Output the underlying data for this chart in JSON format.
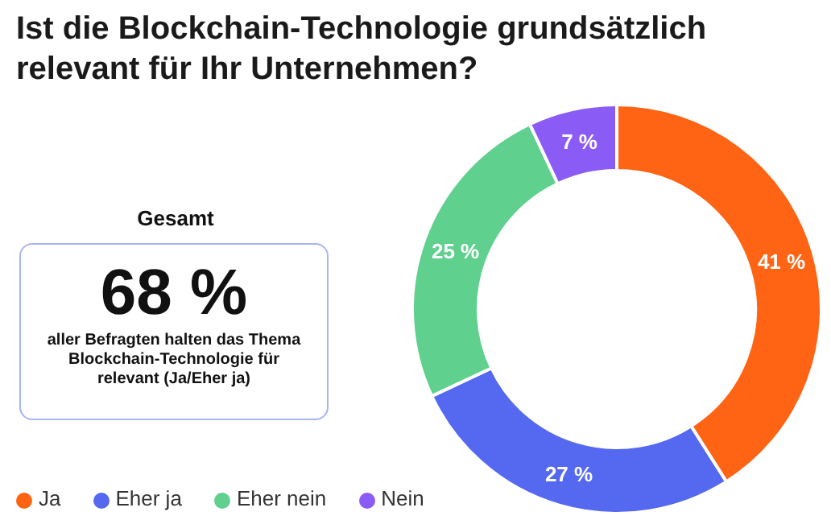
{
  "chart_data": {
    "type": "donut",
    "title": "Ist die Blockchain-Technologie grundsätzlich relevant für Ihr Unternehmen?",
    "categories": [
      "Ja",
      "Eher ja",
      "Eher nein",
      "Nein"
    ],
    "values": [
      41,
      27,
      25,
      7
    ],
    "value_labels": [
      "41 %",
      "27 %",
      "25 %",
      "7 %"
    ],
    "colors": [
      "#ff6414",
      "#5468f0",
      "#5fd08e",
      "#8a5cf5"
    ],
    "legend": "bottom left",
    "annotations": [
      "Gesamt",
      "68 %",
      "aller Befragten halten das Thema Blockchain-Technologie für relevant (Ja/Eher ja)"
    ]
  }
}
